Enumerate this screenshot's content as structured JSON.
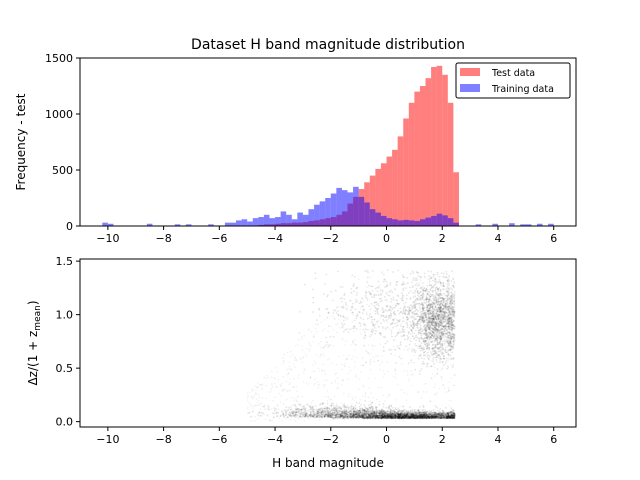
{
  "colors": {
    "test": "#ff0000",
    "training": "#0000ff",
    "scatter": "#000000",
    "overlap": "#7f007f"
  },
  "chart_data": [
    {
      "type": "bar",
      "title": "Dataset H band magnitude distribution",
      "xlabel": "",
      "ylabel": "Frequency - test",
      "xlim": [
        -11,
        6.8
      ],
      "ylim": [
        0,
        1500
      ],
      "xticks": [
        "−10",
        "−8",
        "−6",
        "−4",
        "−2",
        "0",
        "2",
        "4",
        "6"
      ],
      "yticks": [
        "0",
        "500",
        "1000",
        "1500"
      ],
      "bin_width": 0.2,
      "legend": {
        "placement": "top-right"
      },
      "series": [
        {
          "name": "Test data",
          "bins": [
            [
              -4.6,
              10
            ],
            [
              -4.4,
              15
            ],
            [
              -4.2,
              15
            ],
            [
              -4.0,
              20
            ],
            [
              -3.8,
              25
            ],
            [
              -3.6,
              25
            ],
            [
              -3.4,
              30
            ],
            [
              -3.2,
              30
            ],
            [
              -3.0,
              35
            ],
            [
              -2.8,
              45
            ],
            [
              -2.6,
              50
            ],
            [
              -2.4,
              60
            ],
            [
              -2.2,
              70
            ],
            [
              -2.0,
              80
            ],
            [
              -1.8,
              100
            ],
            [
              -1.6,
              130
            ],
            [
              -1.4,
              200
            ],
            [
              -1.2,
              260
            ],
            [
              -1.0,
              330
            ],
            [
              -0.8,
              390
            ],
            [
              -0.6,
              450
            ],
            [
              -0.4,
              510
            ],
            [
              -0.2,
              560
            ],
            [
              0.0,
              620
            ],
            [
              0.2,
              680
            ],
            [
              0.4,
              800
            ],
            [
              0.6,
              960
            ],
            [
              0.8,
              1100
            ],
            [
              1.0,
              1200
            ],
            [
              1.2,
              1250
            ],
            [
              1.4,
              1320
            ],
            [
              1.6,
              1420
            ],
            [
              1.8,
              1430
            ],
            [
              2.0,
              1350
            ],
            [
              2.2,
              1100
            ],
            [
              2.4,
              480
            ]
          ]
        },
        {
          "name": "Training data",
          "bins": [
            [
              -10.2,
              30
            ],
            [
              -10.0,
              20
            ],
            [
              -8.6,
              20
            ],
            [
              -7.6,
              15
            ],
            [
              -7.2,
              15
            ],
            [
              -6.4,
              15
            ],
            [
              -5.8,
              30
            ],
            [
              -5.6,
              30
            ],
            [
              -5.4,
              50
            ],
            [
              -5.2,
              60
            ],
            [
              -5.0,
              40
            ],
            [
              -4.8,
              70
            ],
            [
              -4.6,
              80
            ],
            [
              -4.4,
              100
            ],
            [
              -4.2,
              70
            ],
            [
              -4.0,
              80
            ],
            [
              -3.8,
              130
            ],
            [
              -3.6,
              100
            ],
            [
              -3.4,
              60
            ],
            [
              -3.2,
              120
            ],
            [
              -3.0,
              100
            ],
            [
              -2.8,
              150
            ],
            [
              -2.6,
              190
            ],
            [
              -2.4,
              220
            ],
            [
              -2.2,
              250
            ],
            [
              -2.0,
              290
            ],
            [
              -1.8,
              340
            ],
            [
              -1.6,
              320
            ],
            [
              -1.4,
              300
            ],
            [
              -1.2,
              350
            ],
            [
              -1.0,
              260
            ],
            [
              -0.8,
              210
            ],
            [
              -0.6,
              150
            ],
            [
              -0.4,
              120
            ],
            [
              -0.2,
              90
            ],
            [
              0.0,
              70
            ],
            [
              0.2,
              60
            ],
            [
              0.4,
              50
            ],
            [
              0.6,
              55
            ],
            [
              0.8,
              50
            ],
            [
              1.0,
              45
            ],
            [
              1.2,
              60
            ],
            [
              1.4,
              75
            ],
            [
              1.6,
              90
            ],
            [
              1.8,
              110
            ],
            [
              2.0,
              95
            ],
            [
              2.2,
              70
            ],
            [
              2.4,
              30
            ],
            [
              3.2,
              15
            ],
            [
              3.8,
              20
            ],
            [
              4.4,
              25
            ],
            [
              4.8,
              15
            ],
            [
              5.0,
              15
            ],
            [
              5.4,
              20
            ],
            [
              5.8,
              20
            ]
          ]
        }
      ]
    },
    {
      "type": "scatter",
      "title": "",
      "xlabel": "H band magnitude",
      "ylabel": "Δz/(1 + z_mean)",
      "xlim": [
        -11,
        6.8
      ],
      "ylim": [
        -0.05,
        1.52
      ],
      "xticks": [
        "−10",
        "−8",
        "−6",
        "−4",
        "−2",
        "0",
        "2",
        "4",
        "6"
      ],
      "yticks": [
        "0.0",
        "0.5",
        "1.0",
        "1.5"
      ],
      "grid": false,
      "density_regions": [
        {
          "x_center": 0.8,
          "y_center": 0.03,
          "x_spread": 1.1,
          "y_spread": 0.03,
          "weight": 0.5
        },
        {
          "x_center": -1.5,
          "y_center": 0.04,
          "x_spread": 1.2,
          "y_spread": 0.05,
          "weight": 0.2
        },
        {
          "x_center": 1.8,
          "y_center": 0.95,
          "x_spread": 0.45,
          "y_spread": 0.18,
          "weight": 0.3
        },
        {
          "x_center": 0.2,
          "y_center": 1.05,
          "x_spread": 1.3,
          "y_spread": 0.2,
          "weight": 0.12
        }
      ]
    }
  ]
}
